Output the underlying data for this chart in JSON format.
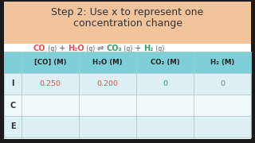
{
  "title_line1": "Step 2: Use x to represent one",
  "title_line2": "concentration change",
  "title_bg": "#f2c49e",
  "content_bg": "#ffffff",
  "outer_bg": "#1a1a1a",
  "col_headers": [
    "[CO] (M)",
    "H₂O (M)",
    "CO₂ (M)",
    "H₂ (M)"
  ],
  "row_labels": [
    "I",
    "C",
    "E"
  ],
  "table_data": [
    [
      "0.250",
      "0.200",
      "0",
      "0"
    ],
    [
      "",
      "",
      "",
      ""
    ],
    [
      "",
      "",
      "",
      ""
    ]
  ],
  "header_bg": "#7ecfd8",
  "row_bg_light": "#ddf0f3",
  "row_bg_white": "#f0fafb",
  "label_col_bg_header": "#7ecfd8",
  "reactant_color": "#e05050",
  "product_color": "#30a060",
  "val_color_reactant": "#e05050",
  "val_color_neutral": "#888888",
  "val_color_product": "#30a060",
  "text_color": "#333333",
  "header_text_color": "#222222",
  "title_fontsize": 9.0,
  "eq_fontsize": 7.0,
  "eq_sub_fontsize": 5.5,
  "table_header_fontsize": 6.2,
  "table_data_fontsize": 6.8,
  "row_label_fontsize": 7.0
}
